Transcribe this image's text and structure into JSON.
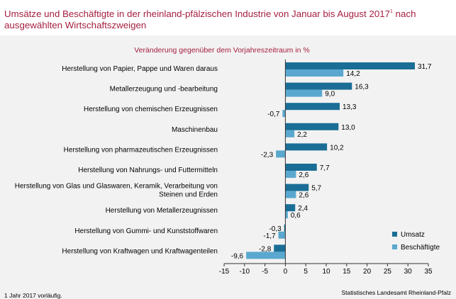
{
  "header": {
    "title": "Umsätze und Beschäftigte in der rheinland-pfälzischen Industrie von Januar bis August 2017",
    "title_sup": "1",
    "title_tail": " nach ausgewählten Wirtschaftszweigen"
  },
  "footnote": "1 Jahr 2017 vorläufig.",
  "source": "Statistisches Landesamt Rheinland-Pfalz",
  "colors": {
    "title": "#a52040",
    "umsatz": "#1a6e96",
    "beschaeftigte": "#5aa8cf",
    "panel": "#f2f2f2"
  },
  "chart_data": {
    "type": "bar",
    "orientation": "horizontal",
    "subtitle": "Veränderung gegenüber dem Vorjahreszeitraum in %",
    "categories": [
      [
        "Herstellung von Papier, Pappe und Waren daraus"
      ],
      [
        "Metallerzeugung und -bearbeitung"
      ],
      [
        "Herstellung von chemischen Erzeugnissen"
      ],
      [
        "Maschinenbau"
      ],
      [
        "Herstellung von pharmazeutischen Erzeugnissen"
      ],
      [
        "Herstellung von Nahrungs- und Futtermitteln"
      ],
      [
        "Herstellung von Glas und Glaswaren, Keramik, Verarbeitung von",
        "Steinen und Erden"
      ],
      [
        "Herstellung von Metallerzeugnissen"
      ],
      [
        "Herstellung von Gummi- und Kunststoffwaren"
      ],
      [
        "Herstellung von Kraftwagen und Kraftwagenteilen"
      ]
    ],
    "series": [
      {
        "name": "Umsatz",
        "values": [
          31.7,
          16.3,
          13.3,
          13.0,
          10.2,
          7.7,
          5.7,
          2.4,
          -0.3,
          -2.8
        ],
        "labels": [
          "31,7",
          "16,3",
          "13,3",
          "13,0",
          "10,2",
          "7,7",
          "5,7",
          "2,4",
          "-0,3",
          "-2,8"
        ]
      },
      {
        "name": "Beschäftigte",
        "values": [
          14.2,
          9.0,
          -0.7,
          2.2,
          -2.3,
          2.6,
          2.6,
          0.6,
          -1.7,
          -9.6
        ],
        "labels": [
          "14,2",
          "9,0",
          "-0,7",
          "2,2",
          "-2,3",
          "2,6",
          "2,6",
          "0,6",
          "-1,7",
          "-9,6"
        ]
      }
    ],
    "xlim": [
      -15,
      35
    ],
    "xticks": [
      -15,
      -10,
      -5,
      0,
      5,
      10,
      15,
      20,
      25,
      30,
      35
    ],
    "grid": false,
    "legend": "bottom-right"
  }
}
